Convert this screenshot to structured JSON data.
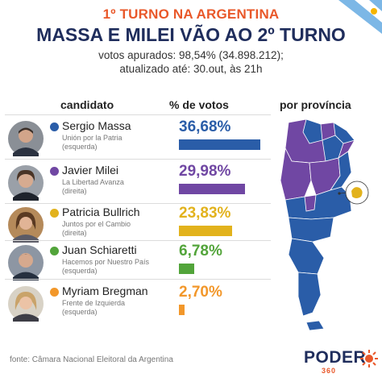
{
  "header": {
    "kicker": "1º TURNO NA ARGENTINA",
    "title": "MASSA E MILEI VÃO AO 2º TURNO",
    "subtitle_line1": "votos apurados: 98,54% (34.898.212);",
    "subtitle_line2": "atualizado até: 30.out, às 21h"
  },
  "columns": {
    "candidate": "candidato",
    "votes": "% de votos",
    "province": "por província"
  },
  "chart_data": {
    "type": "bar",
    "title": "MASSA E MILEI VÃO AO 2º TURNO",
    "xlabel": "candidato",
    "ylabel": "% de votos",
    "ylim": [
      0,
      40
    ],
    "categories": [
      "Sergio Massa",
      "Javier Milei",
      "Patricia Bullrich",
      "Juan Schiaretti",
      "Myriam Bregman"
    ],
    "values": [
      36.68,
      29.98,
      23.83,
      6.78,
      2.7
    ],
    "candidates": [
      {
        "name": "Sergio Massa",
        "party": "Unión por la Patria",
        "leaning": "(esquerda)",
        "pct": 36.68,
        "pct_label": "36,68%",
        "color": "#2a5da8"
      },
      {
        "name": "Javier Milei",
        "party": "La Libertad Avanza",
        "leaning": "(direita)",
        "pct": 29.98,
        "pct_label": "29,98%",
        "color": "#7047a3"
      },
      {
        "name": "Patricia Bullrich",
        "party": "Juntos por el Cambio",
        "leaning": "(direita)",
        "pct": 23.83,
        "pct_label": "23,83%",
        "color": "#e2b21c"
      },
      {
        "name": "Juan Schiaretti",
        "party": "Hacemos por Nuestro País",
        "leaning": "(esquerda)",
        "pct": 6.78,
        "pct_label": "6,78%",
        "color": "#52a43a"
      },
      {
        "name": "Myriam Bregman",
        "party": "Frente de Izquierda",
        "leaning": "(esquerda)",
        "pct": 2.7,
        "pct_label": "2,70%",
        "color": "#f2972a"
      }
    ]
  },
  "map": {
    "colors": {
      "massa": "#2a5da8",
      "milei": "#7047a3",
      "bullrich": "#e2b21c"
    }
  },
  "footer": {
    "source": "fonte: Câmara Nacional Eleitoral da Argentina",
    "logo_word": "PODER",
    "logo_number": "360"
  }
}
